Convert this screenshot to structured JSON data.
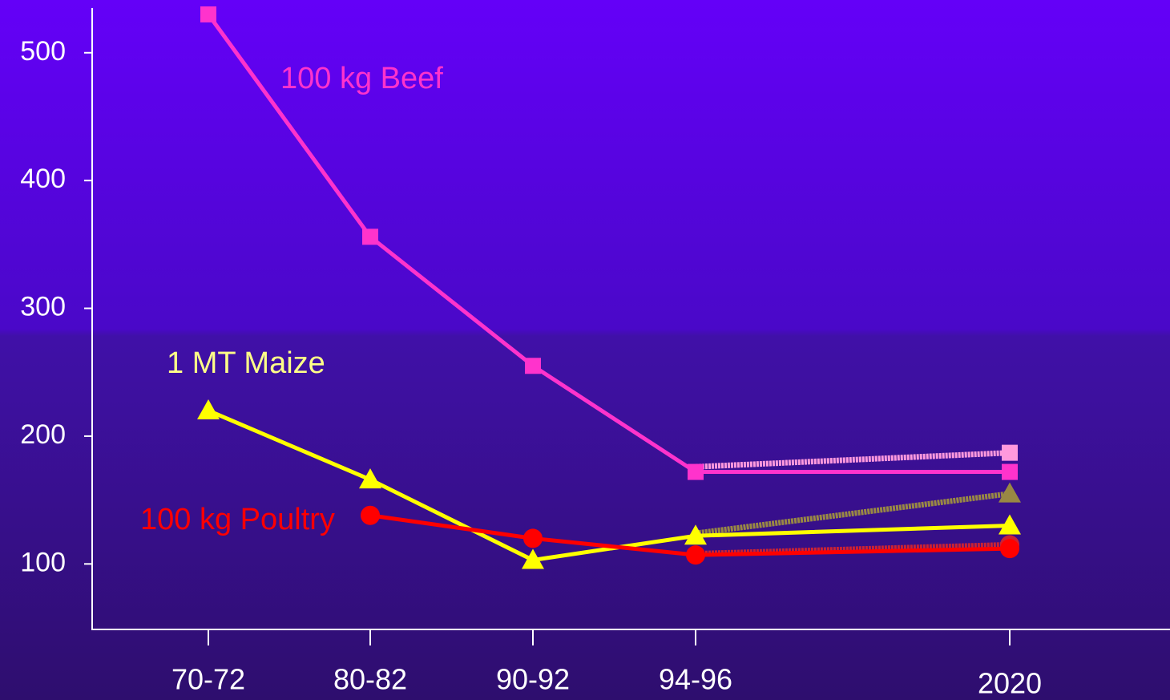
{
  "chart_data": {
    "type": "line",
    "categories": [
      "70-72",
      "80-82",
      "90-92",
      "94-96",
      "2020"
    ],
    "ylim": [
      50,
      535
    ],
    "yticks": [
      100,
      200,
      300,
      400,
      500
    ],
    "series": [
      {
        "name": "100 kg Beef",
        "color": "#ff33cc",
        "marker": "square",
        "values": [
          530,
          356,
          255,
          172,
          172
        ]
      },
      {
        "name": "1 MT Maize",
        "color": "#ffff00",
        "marker": "triangle",
        "values": [
          220,
          166,
          103,
          122,
          130
        ]
      },
      {
        "name": "100 kg Poultry",
        "color": "#ff0000",
        "marker": "circle",
        "values": [
          null,
          138,
          120,
          107,
          112
        ]
      },
      {
        "color": "#ff99dd",
        "marker": "square",
        "dashed": true,
        "values": [
          null,
          null,
          null,
          176,
          187
        ]
      },
      {
        "color": "#998844",
        "marker": "triangle",
        "dashed": true,
        "values": [
          null,
          null,
          null,
          124,
          155
        ]
      },
      {
        "color": "#cc2233",
        "marker": "circle",
        "dashed": true,
        "values": [
          null,
          null,
          null,
          108,
          115
        ]
      }
    ]
  }
}
